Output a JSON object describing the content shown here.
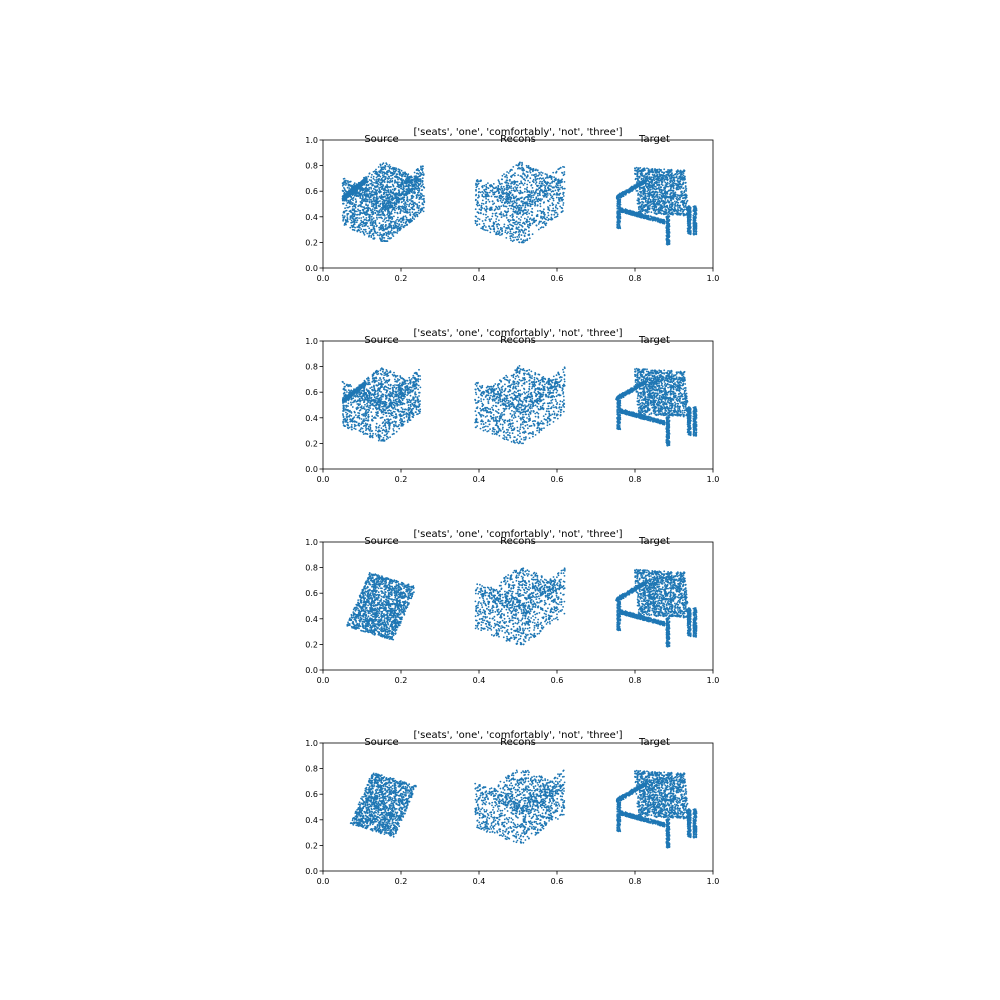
{
  "figure": {
    "background": "#ffffff",
    "point_color": "#1f77b4"
  },
  "chart_data": [
    {
      "type": "scatter",
      "title": "['seats', 'one', 'comfortably', 'not', 'three']",
      "xlabel": "",
      "ylabel": "",
      "xlim": [
        0,
        1
      ],
      "ylim": [
        0,
        1
      ],
      "xticks": [
        "0.0",
        "0.2",
        "0.4",
        "0.6",
        "0.8",
        "1.0"
      ],
      "yticks": [
        "0.0",
        "0.2",
        "0.4",
        "0.6",
        "0.8",
        "1.0"
      ],
      "annotations": [
        {
          "text": "Source",
          "x": 0.15,
          "y": 1.0
        },
        {
          "text": "Recons",
          "x": 0.5,
          "y": 1.0
        },
        {
          "text": "Target",
          "x": 0.85,
          "y": 1.0
        }
      ],
      "series": [
        {
          "shape": "chair-dense",
          "x_range": [
            0.05,
            0.26
          ],
          "y_range": [
            0.21,
            0.83
          ]
        },
        {
          "shape": "box-sparse",
          "x_range": [
            0.39,
            0.62
          ],
          "y_range": [
            0.2,
            0.83
          ]
        },
        {
          "shape": "chair-target",
          "x_range": [
            0.75,
            0.96
          ],
          "y_range": [
            0.18,
            0.83
          ]
        }
      ]
    },
    {
      "type": "scatter",
      "title": "['seats', 'one', 'comfortably', 'not', 'three']",
      "xlabel": "",
      "ylabel": "",
      "xlim": [
        0,
        1
      ],
      "ylim": [
        0,
        1
      ],
      "xticks": [
        "0.0",
        "0.2",
        "0.4",
        "0.6",
        "0.8",
        "1.0"
      ],
      "yticks": [
        "0.0",
        "0.2",
        "0.4",
        "0.6",
        "0.8",
        "1.0"
      ],
      "annotations": [
        {
          "text": "Source",
          "x": 0.15,
          "y": 1.0
        },
        {
          "text": "Recons",
          "x": 0.5,
          "y": 1.0
        },
        {
          "text": "Target",
          "x": 0.85,
          "y": 1.0
        }
      ],
      "series": [
        {
          "shape": "chair-medium",
          "x_range": [
            0.05,
            0.25
          ],
          "y_range": [
            0.22,
            0.8
          ]
        },
        {
          "shape": "box-sparse",
          "x_range": [
            0.39,
            0.62
          ],
          "y_range": [
            0.2,
            0.81
          ]
        },
        {
          "shape": "chair-target",
          "x_range": [
            0.75,
            0.96
          ],
          "y_range": [
            0.18,
            0.83
          ]
        }
      ]
    },
    {
      "type": "scatter",
      "title": "['seats', 'one', 'comfortably', 'not', 'three']",
      "xlabel": "",
      "ylabel": "",
      "xlim": [
        0,
        1
      ],
      "ylim": [
        0,
        1
      ],
      "xticks": [
        "0.0",
        "0.2",
        "0.4",
        "0.6",
        "0.8",
        "1.0"
      ],
      "yticks": [
        "0.0",
        "0.2",
        "0.4",
        "0.6",
        "0.8",
        "1.0"
      ],
      "annotations": [
        {
          "text": "Source",
          "x": 0.15,
          "y": 1.0
        },
        {
          "text": "Recons",
          "x": 0.5,
          "y": 1.0
        },
        {
          "text": "Target",
          "x": 0.85,
          "y": 1.0
        }
      ],
      "series": [
        {
          "shape": "blob-medium",
          "x_range": [
            0.05,
            0.25
          ],
          "y_range": [
            0.23,
            0.79
          ]
        },
        {
          "shape": "box-sparse",
          "x_range": [
            0.39,
            0.62
          ],
          "y_range": [
            0.2,
            0.81
          ]
        },
        {
          "shape": "chair-target",
          "x_range": [
            0.75,
            0.96
          ],
          "y_range": [
            0.18,
            0.83
          ]
        }
      ]
    },
    {
      "type": "scatter",
      "title": "['seats', 'one', 'comfortably', 'not', 'three']",
      "xlabel": "",
      "ylabel": "",
      "xlim": [
        0,
        1
      ],
      "ylim": [
        0,
        1
      ],
      "xticks": [
        "0.0",
        "0.2",
        "0.4",
        "0.6",
        "0.8",
        "1.0"
      ],
      "yticks": [
        "0.0",
        "0.2",
        "0.4",
        "0.6",
        "0.8",
        "1.0"
      ],
      "annotations": [
        {
          "text": "Source",
          "x": 0.15,
          "y": 1.0
        },
        {
          "text": "Recons",
          "x": 0.5,
          "y": 1.0
        },
        {
          "text": "Target",
          "x": 0.85,
          "y": 1.0
        }
      ],
      "series": [
        {
          "shape": "blob-small",
          "x_range": [
            0.06,
            0.25
          ],
          "y_range": [
            0.26,
            0.8
          ]
        },
        {
          "shape": "box-sparse",
          "x_range": [
            0.39,
            0.62
          ],
          "y_range": [
            0.22,
            0.81
          ]
        },
        {
          "shape": "chair-target",
          "x_range": [
            0.75,
            0.96
          ],
          "y_range": [
            0.18,
            0.83
          ]
        }
      ]
    }
  ]
}
